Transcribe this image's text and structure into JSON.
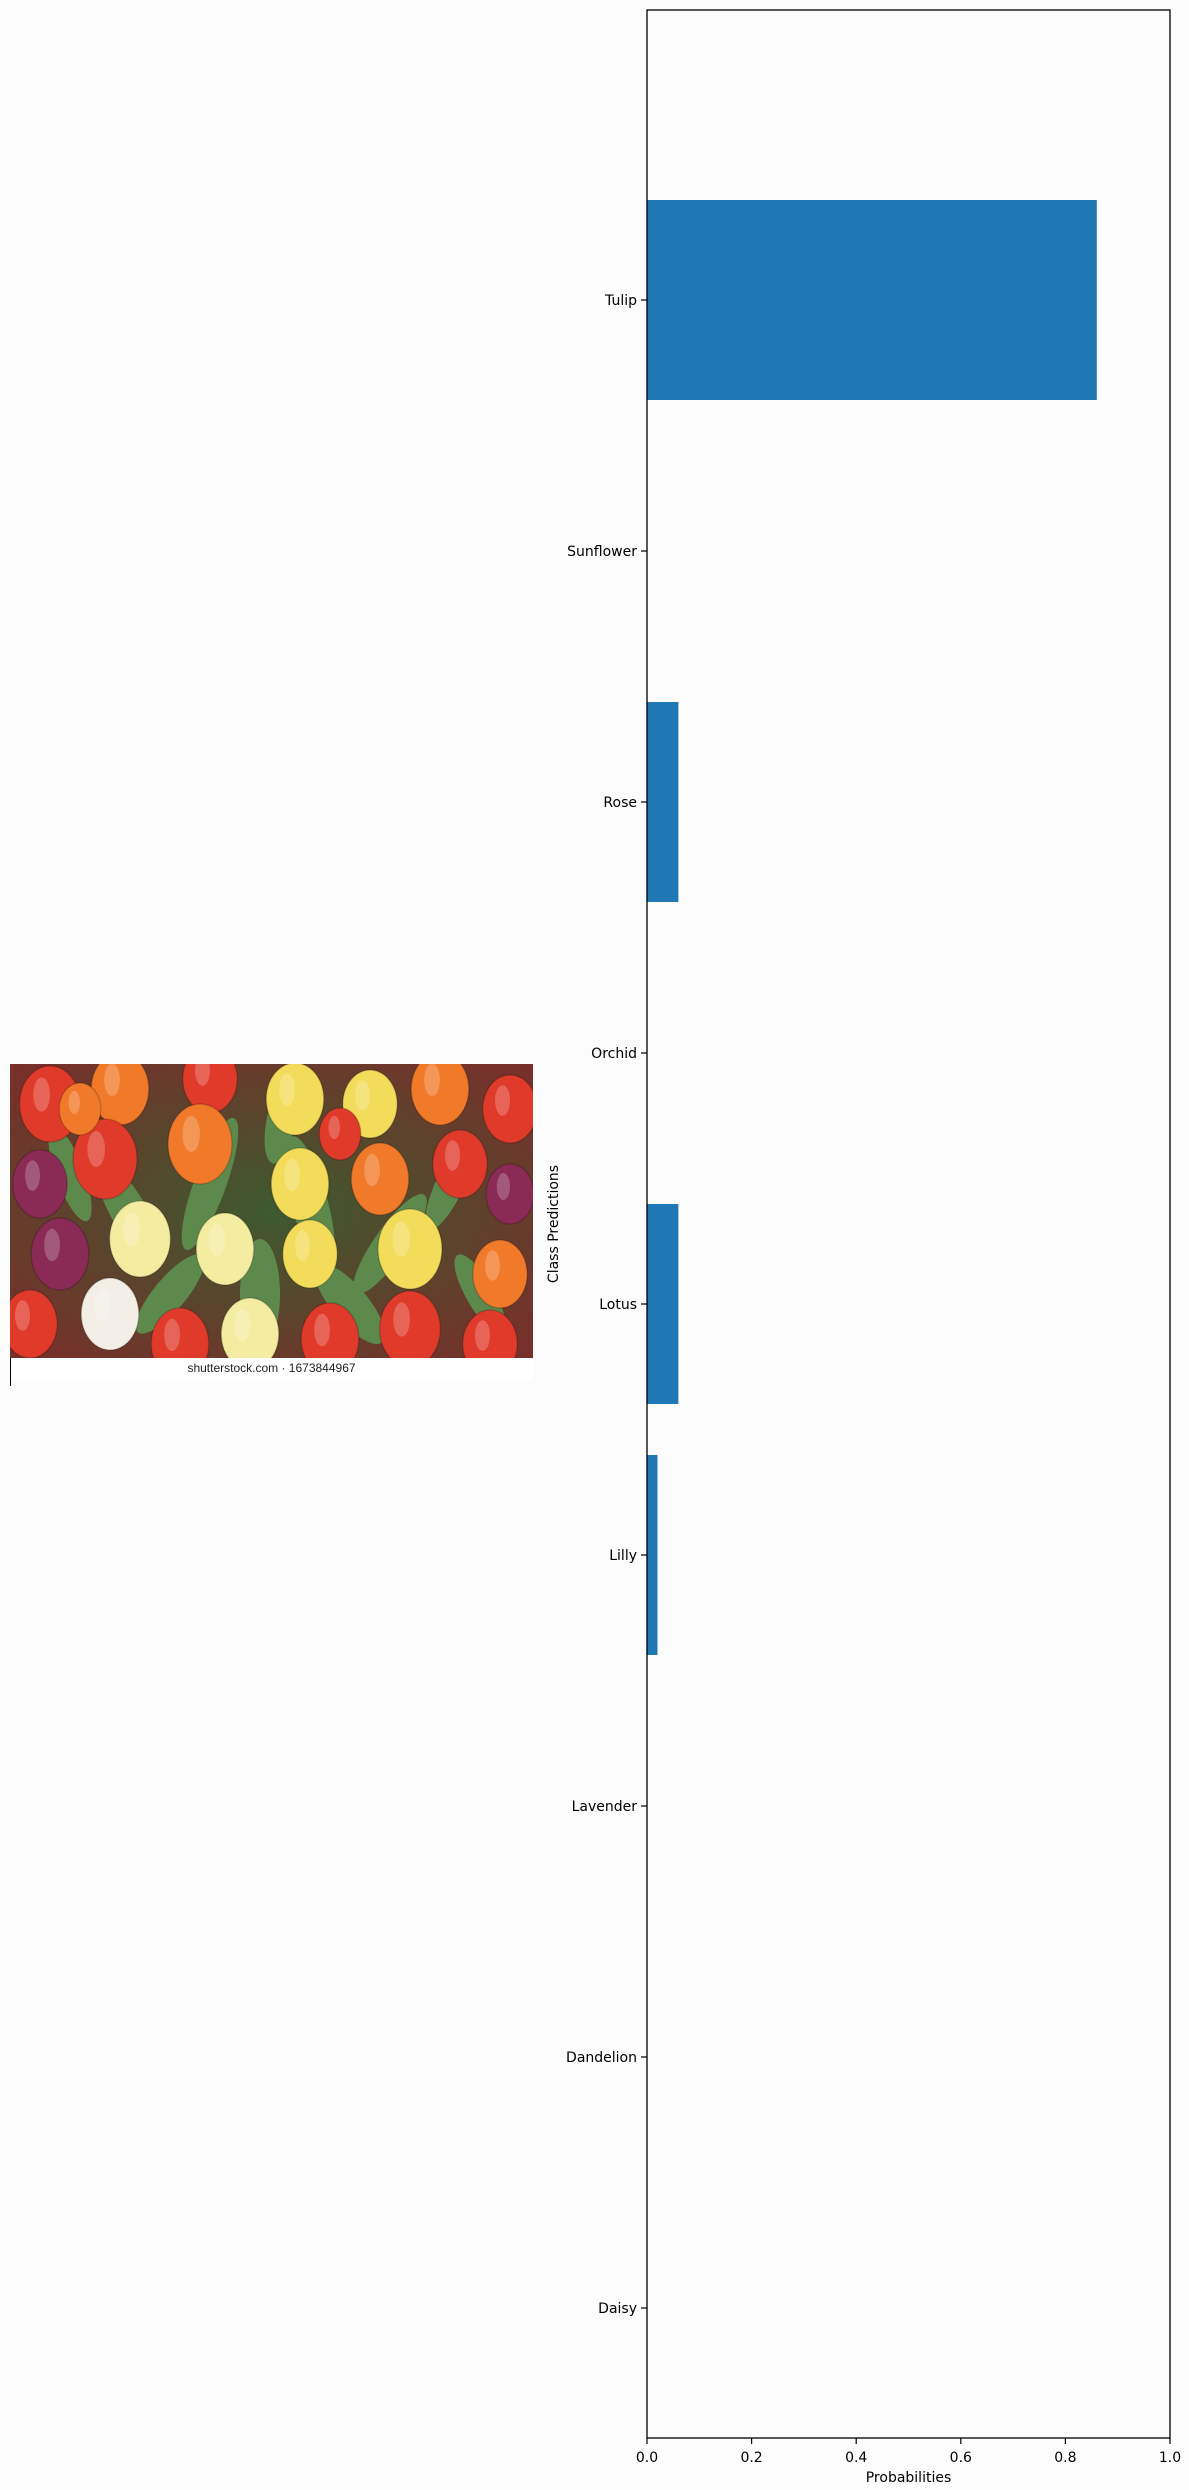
{
  "photo": {
    "caption": "shutterstock.com · 1673844967",
    "palette": {
      "red": "#e03a2a",
      "orange": "#f0792a",
      "yellow": "#f2dc5a",
      "cream": "#f4eca0",
      "purple": "#8a2b55",
      "white": "#f3efe6",
      "leaf": "#5d8a4c"
    }
  },
  "chart_data": {
    "type": "bar",
    "orientation": "horizontal",
    "categories": [
      "Tulip",
      "Sunflower",
      "Rose",
      "Orchid",
      "Lotus",
      "Lilly",
      "Lavender",
      "Dandelion",
      "Daisy"
    ],
    "values": [
      0.86,
      0.0,
      0.06,
      0.0,
      0.06,
      0.02,
      0.0,
      0.0,
      0.0
    ],
    "xlabel": "Probabilities",
    "ylabel": "Class Predictions",
    "xlim": [
      0,
      1.0
    ],
    "xticks": [
      "0.0",
      "0.2",
      "0.4",
      "0.6",
      "0.8",
      "1.0"
    ],
    "bar_color": "#1f77b4",
    "grid": false
  }
}
